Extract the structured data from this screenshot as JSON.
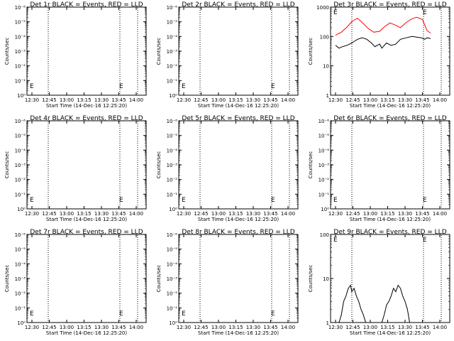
{
  "chart_data": [
    {
      "type": "line",
      "title": "Det 1r BLACK = Events, RED = LLD",
      "xlabel": "Start Time (14-Dec-16 12:25:20)",
      "ylabel": "Counts/sec",
      "scale": "log",
      "yticks": [
        "10⁰",
        "10⁻¹",
        "10⁻²",
        "10⁻³",
        "10⁻⁴",
        "10⁻⁵",
        "10⁻⁶"
      ],
      "xticks": [
        "12:30",
        "12:45",
        "13:00",
        "13:15",
        "13:30",
        "13:45",
        "14:00"
      ],
      "marker": "E",
      "series": []
    },
    {
      "type": "line",
      "title": "Det 2r BLACK = Events, RED = LLD",
      "xlabel": "Start Time (14-Dec-16 12:25:20)",
      "ylabel": "Counts/sec",
      "scale": "log",
      "yticks": [
        "10⁰",
        "10⁻¹",
        "10⁻²",
        "10⁻³",
        "10⁻⁴",
        "10⁻⁵",
        "10⁻⁶"
      ],
      "xticks": [
        "12:30",
        "12:45",
        "13:00",
        "13:15",
        "13:30",
        "13:45",
        "14:00"
      ],
      "marker": "E",
      "series": []
    },
    {
      "type": "line",
      "title": "Det 3r BLACK = Events, RED = LLD",
      "xlabel": "Start Time (14-Dec-16 12:25:20)",
      "ylabel": "Counts/sec",
      "scale": "log",
      "yticks": [
        "1",
        "10",
        "100",
        "1000"
      ],
      "xticks": [
        "12:30",
        "12:45",
        "13:00",
        "13:15",
        "13:30",
        "13:45",
        "14:00"
      ],
      "marker": "E",
      "series": [
        {
          "color": "#ff0000",
          "x": [
            0,
            5,
            10,
            14,
            19,
            23,
            28,
            33,
            38,
            42,
            47,
            51,
            56,
            61,
            66,
            70,
            75,
            79,
            82
          ],
          "y": [
            110,
            140,
            210,
            320,
            420,
            300,
            190,
            140,
            150,
            210,
            290,
            250,
            200,
            300,
            400,
            450,
            380,
            160,
            130
          ]
        },
        {
          "color": "#000000",
          "x": [
            0,
            3,
            6,
            10,
            14,
            19,
            23,
            27,
            31,
            34,
            38,
            40,
            44,
            48,
            52,
            56,
            61,
            66,
            70,
            74,
            77,
            79,
            82
          ],
          "y": [
            50,
            40,
            45,
            50,
            60,
            80,
            90,
            80,
            60,
            45,
            55,
            40,
            60,
            50,
            55,
            80,
            90,
            100,
            95,
            90,
            80,
            90,
            85
          ]
        }
      ]
    },
    {
      "type": "line",
      "title": "Det 4r BLACK = Events, RED = LLD",
      "xlabel": "Start Time (14-Dec-16 12:25:20)",
      "ylabel": "Counts/sec",
      "scale": "log",
      "yticks": [
        "10⁰",
        "10⁻¹",
        "10⁻²",
        "10⁻³",
        "10⁻⁴",
        "10⁻⁵",
        "10⁻⁶"
      ],
      "xticks": [
        "12:30",
        "12:45",
        "13:00",
        "13:15",
        "13:30",
        "13:45",
        "14:00"
      ],
      "marker": "E",
      "series": []
    },
    {
      "type": "line",
      "title": "Det 5r BLACK = Events, RED = LLD",
      "xlabel": "Start Time (14-Dec-16 12:25:20)",
      "ylabel": "Counts/sec",
      "scale": "log",
      "yticks": [
        "10⁰",
        "10⁻¹",
        "10⁻²",
        "10⁻³",
        "10⁻⁴",
        "10⁻⁵",
        "10⁻⁶"
      ],
      "xticks": [
        "12:30",
        "12:45",
        "13:00",
        "13:15",
        "13:30",
        "13:45",
        "14:00"
      ],
      "marker": "E",
      "series": []
    },
    {
      "type": "line",
      "title": "Det 6r BLACK = Events, RED = LLD",
      "xlabel": "Start Time (14-Dec-16 12:25:20)",
      "ylabel": "Counts/sec",
      "scale": "log",
      "yticks": [
        "10⁰",
        "10⁻¹",
        "10⁻²",
        "10⁻³",
        "10⁻⁴",
        "10⁻⁵",
        "10⁻⁶"
      ],
      "xticks": [
        "12:30",
        "12:45",
        "13:00",
        "13:15",
        "13:30",
        "13:45",
        "14:00"
      ],
      "marker": "E",
      "series": []
    },
    {
      "type": "line",
      "title": "Det 7r BLACK = Events, RED = LLD",
      "xlabel": "Start Time (14-Dec-16 12:25:20)",
      "ylabel": "Counts/sec",
      "scale": "log",
      "yticks": [
        "10⁰",
        "10⁻¹",
        "10⁻²",
        "10⁻³",
        "10⁻⁴",
        "10⁻⁵",
        "10⁻⁶"
      ],
      "xticks": [
        "12:30",
        "12:45",
        "13:00",
        "13:15",
        "13:30",
        "13:45",
        "14:00"
      ],
      "marker": "E",
      "series": []
    },
    {
      "type": "line",
      "title": "Det 8r BLACK = Events, RED = LLD",
      "xlabel": "Start Time (14-Dec-16 12:25:20)",
      "ylabel": "Counts/sec",
      "scale": "log",
      "yticks": [
        "10⁰",
        "10⁻¹",
        "10⁻²",
        "10⁻³",
        "10⁻⁴",
        "10⁻⁵",
        "10⁻⁶"
      ],
      "xticks": [
        "12:30",
        "12:45",
        "13:00",
        "13:15",
        "13:30",
        "13:45",
        "14:00"
      ],
      "marker": "E",
      "series": []
    },
    {
      "type": "line",
      "title": "Det 9r BLACK = Events, RED = LLD",
      "xlabel": "Start Time (14-Dec-16 12:25:20)",
      "ylabel": "Counts/sec",
      "scale": "log",
      "yticks": [
        "1",
        "10",
        "100"
      ],
      "xticks": [
        "12:30",
        "12:45",
        "13:00",
        "13:15",
        "13:30",
        "13:45",
        "14:00"
      ],
      "marker": "E",
      "series": [
        {
          "color": "#000000",
          "x": [
            0,
            3,
            5,
            7,
            9,
            11,
            13,
            14,
            16,
            18,
            20,
            22,
            24,
            26,
            28,
            40,
            42,
            44,
            46,
            48,
            50,
            52,
            54,
            56,
            58,
            60,
            62,
            64
          ],
          "y": [
            1,
            1,
            1.5,
            3,
            4,
            6,
            7,
            5,
            6,
            4,
            3,
            2,
            1.5,
            1,
            1,
            1,
            1.5,
            2.5,
            3,
            4,
            6,
            5,
            7,
            6,
            4,
            3,
            2,
            1
          ]
        }
      ]
    }
  ]
}
